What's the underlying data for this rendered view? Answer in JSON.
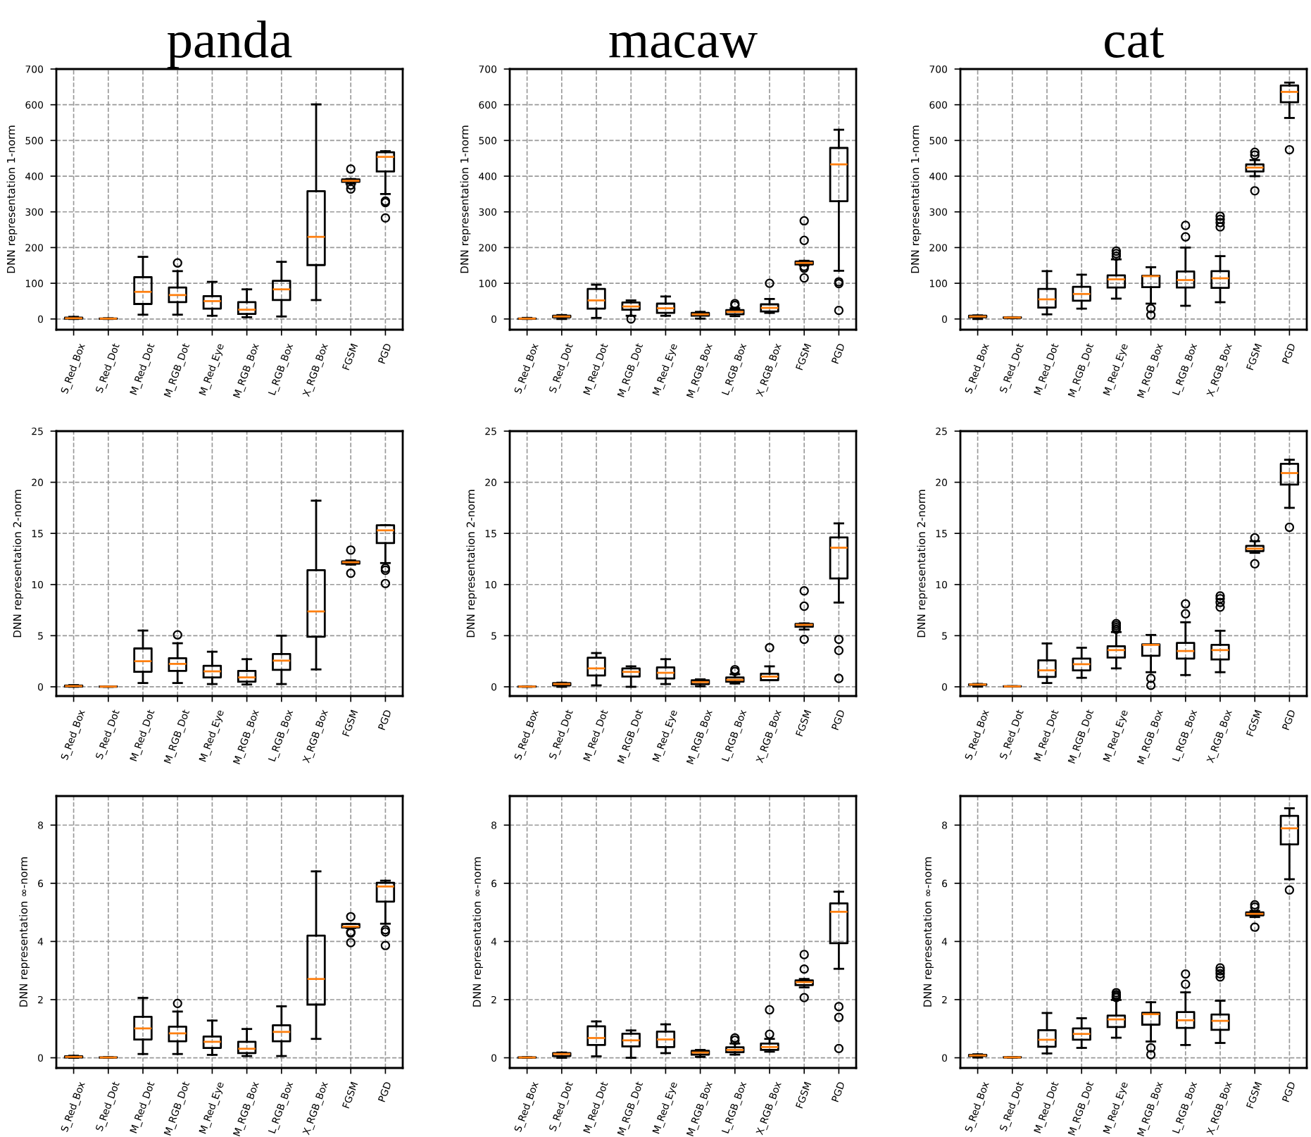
{
  "chart_data": [
    {
      "type": "box",
      "title": "panda",
      "ylabel": "DNN representation 1-norm",
      "categories": [
        "S_Red_Box",
        "S_Red_Dot",
        "M_Red_Dot",
        "M_RGB_Dot",
        "M_Red_Eye",
        "M_RGB_Box",
        "L_RGB_Box",
        "X_RGB_Box",
        "FGSM",
        "PGD"
      ],
      "ylim": [
        -30,
        700
      ],
      "yticks": [
        0,
        100,
        200,
        300,
        400,
        500,
        600,
        700
      ],
      "grid": true,
      "boxes": [
        {
          "low": 0,
          "q1": 1,
          "median": 2,
          "q3": 4,
          "high": 6
        },
        {
          "low": 0,
          "q1": 0.5,
          "median": 1,
          "q3": 1.5,
          "high": 2
        },
        {
          "low": 12,
          "q1": 42,
          "median": 76,
          "q3": 117,
          "high": 174
        },
        {
          "low": 12,
          "q1": 47,
          "median": 67,
          "q3": 88,
          "high": 134,
          "outliers": [
            157
          ]
        },
        {
          "low": 9,
          "q1": 29,
          "median": 50,
          "q3": 64,
          "high": 104
        },
        {
          "low": 5,
          "q1": 14,
          "median": 26,
          "q3": 47,
          "high": 83
        },
        {
          "low": 7,
          "q1": 53,
          "median": 83,
          "q3": 107,
          "high": 160
        },
        {
          "low": 53,
          "q1": 151,
          "median": 230,
          "q3": 358,
          "high": 601
        },
        {
          "low": 379,
          "q1": 384,
          "median": 387,
          "q3": 391,
          "high": 392,
          "outliers": [
            420,
            375,
            364
          ]
        },
        {
          "low": 350,
          "q1": 413,
          "median": 454,
          "q3": 467,
          "high": 470,
          "outliers": [
            330,
            326,
            283
          ]
        }
      ]
    },
    {
      "type": "box",
      "title": "macaw",
      "ylabel": "DNN representation 1-norm",
      "categories": [
        "S_Red_Box",
        "S_Red_Dot",
        "M_Red_Dot",
        "M_RGB_Dot",
        "M_Red_Eye",
        "M_RGB_Box",
        "L_RGB_Box",
        "X_RGB_Box",
        "FGSM",
        "PGD"
      ],
      "ylim": [
        -30,
        700
      ],
      "yticks": [
        0,
        100,
        200,
        300,
        400,
        500,
        600,
        700
      ],
      "grid": true,
      "boxes": [
        {
          "low": 0,
          "q1": 0.5,
          "median": 1,
          "q3": 1.5,
          "high": 3
        },
        {
          "low": 0,
          "q1": 5,
          "median": 7,
          "q3": 9,
          "high": 11
        },
        {
          "low": 3,
          "q1": 29,
          "median": 52,
          "q3": 84,
          "high": 96
        },
        {
          "low": 9,
          "q1": 26,
          "median": 35,
          "q3": 46,
          "high": 52,
          "outliers": [
            0
          ]
        },
        {
          "low": 9,
          "q1": 17,
          "median": 30,
          "q3": 43,
          "high": 63
        },
        {
          "low": 1,
          "q1": 9,
          "median": 13,
          "q3": 17,
          "high": 20
        },
        {
          "low": 8,
          "q1": 13,
          "median": 20,
          "q3": 25,
          "high": 30,
          "outliers": [
            43,
            38
          ]
        },
        {
          "low": 17,
          "q1": 21,
          "median": 31,
          "q3": 41,
          "high": 56,
          "outliers": [
            100
          ]
        },
        {
          "low": 150,
          "q1": 153,
          "median": 157,
          "q3": 161,
          "high": 163,
          "outliers": [
            275,
            220,
            147,
            142,
            115
          ]
        },
        {
          "low": 135,
          "q1": 330,
          "median": 433,
          "q3": 479,
          "high": 530,
          "outliers": [
            104,
            99,
            24
          ]
        }
      ]
    },
    {
      "type": "box",
      "title": "cat",
      "ylabel": "DNN representation 1-norm",
      "categories": [
        "S_Red_Box",
        "S_Red_Dot",
        "M_Red_Dot",
        "M_RGB_Dot",
        "M_Red_Eye",
        "M_RGB_Box",
        "L_RGB_Box",
        "X_RGB_Box",
        "FGSM",
        "PGD"
      ],
      "ylim": [
        -30,
        700
      ],
      "yticks": [
        0,
        100,
        200,
        300,
        400,
        500,
        600,
        700
      ],
      "grid": true,
      "boxes": [
        {
          "low": 0,
          "q1": 5,
          "median": 7,
          "q3": 9,
          "high": 10
        },
        {
          "low": 2,
          "q1": 3,
          "median": 4,
          "q3": 4.5,
          "high": 5
        },
        {
          "low": 13,
          "q1": 32,
          "median": 55,
          "q3": 84,
          "high": 134
        },
        {
          "low": 29,
          "q1": 51,
          "median": 70,
          "q3": 90,
          "high": 124
        },
        {
          "low": 57,
          "q1": 88,
          "median": 111,
          "q3": 122,
          "high": 167,
          "outliers": [
            190,
            183,
            176
          ]
        },
        {
          "low": 43,
          "q1": 89,
          "median": 120,
          "q3": 121,
          "high": 145,
          "outliers": [
            29,
            11
          ]
        },
        {
          "low": 37,
          "q1": 88,
          "median": 109,
          "q3": 133,
          "high": 200,
          "outliers": [
            262,
            230
          ]
        },
        {
          "low": 47,
          "q1": 87,
          "median": 114,
          "q3": 134,
          "high": 176,
          "outliers": [
            288,
            279,
            270,
            258
          ]
        },
        {
          "low": 400,
          "q1": 413,
          "median": 424,
          "q3": 433,
          "high": 445,
          "outliers": [
            467,
            459,
            359
          ]
        },
        {
          "low": 563,
          "q1": 607,
          "median": 636,
          "q3": 654,
          "high": 662,
          "outliers": [
            474
          ]
        }
      ]
    },
    {
      "type": "box",
      "ylabel": "DNN representation 2-norm",
      "categories": [
        "S_Red_Box",
        "S_Red_Dot",
        "M_Red_Dot",
        "M_RGB_Dot",
        "M_Red_Eye",
        "M_RGB_Box",
        "L_RGB_Box",
        "X_RGB_Box",
        "FGSM",
        "PGD"
      ],
      "ylim": [
        -0.9,
        25
      ],
      "yticks": [
        0,
        5,
        10,
        15,
        20,
        25
      ],
      "grid": true,
      "boxes": [
        {
          "low": 0,
          "q1": 0.02,
          "median": 0.07,
          "q3": 0.13,
          "high": 0.17
        },
        {
          "low": 0,
          "q1": 0.01,
          "median": 0.02,
          "q3": 0.03,
          "high": 0.04
        },
        {
          "low": 0.37,
          "q1": 1.47,
          "median": 2.5,
          "q3": 3.75,
          "high": 5.5
        },
        {
          "low": 0.37,
          "q1": 1.56,
          "median": 2.24,
          "q3": 2.79,
          "high": 4.26,
          "outliers": [
            5.08
          ]
        },
        {
          "low": 0.27,
          "q1": 0.92,
          "median": 1.51,
          "q3": 2.06,
          "high": 3.43
        },
        {
          "low": 0.23,
          "q1": 0.5,
          "median": 0.92,
          "q3": 1.56,
          "high": 2.7
        },
        {
          "low": 0.27,
          "q1": 1.65,
          "median": 2.56,
          "q3": 3.2,
          "high": 5.0
        },
        {
          "low": 1.7,
          "q1": 4.9,
          "median": 7.37,
          "q3": 11.4,
          "high": 18.2
        },
        {
          "low": 11.95,
          "q1": 12.04,
          "median": 12.18,
          "q3": 12.27,
          "high": 12.36,
          "outliers": [
            13.37,
            11.1
          ]
        },
        {
          "low": 12.1,
          "q1": 14.05,
          "median": 15.3,
          "q3": 15.8,
          "high": 15.8,
          "outliers": [
            11.6,
            11.4,
            10.1
          ]
        }
      ]
    },
    {
      "type": "box",
      "ylabel": "DNN representation 2-norm",
      "categories": [
        "S_Red_Box",
        "S_Red_Dot",
        "M_Red_Dot",
        "M_RGB_Dot",
        "M_Red_Eye",
        "M_RGB_Box",
        "L_RGB_Box",
        "X_RGB_Box",
        "FGSM",
        "PGD"
      ],
      "ylim": [
        -0.9,
        25
      ],
      "yticks": [
        0,
        5,
        10,
        15,
        20,
        25
      ],
      "grid": true,
      "boxes": [
        {
          "low": 0,
          "q1": 0.01,
          "median": 0.02,
          "q3": 0.03,
          "high": 0.05
        },
        {
          "low": 0,
          "q1": 0.14,
          "median": 0.27,
          "q3": 0.37,
          "high": 0.4
        },
        {
          "low": 0.14,
          "q1": 1.1,
          "median": 1.8,
          "q3": 2.85,
          "high": 3.3
        },
        {
          "low": 0,
          "q1": 1.0,
          "median": 1.46,
          "q3": 1.8,
          "high": 2.0
        },
        {
          "low": 0.27,
          "q1": 0.82,
          "median": 1.37,
          "q3": 1.9,
          "high": 2.7
        },
        {
          "low": 0.05,
          "q1": 0.27,
          "median": 0.46,
          "q3": 0.64,
          "high": 0.73
        },
        {
          "low": 0.32,
          "q1": 0.5,
          "median": 0.68,
          "q3": 0.91,
          "high": 1.23,
          "outliers": [
            1.68,
            1.5
          ]
        },
        {
          "low": 0.65,
          "q1": 0.65,
          "median": 1.0,
          "q3": 1.28,
          "high": 2.0,
          "outliers": [
            3.83
          ]
        },
        {
          "low": 5.6,
          "q1": 5.87,
          "median": 6.06,
          "q3": 6.15,
          "high": 6.2,
          "outliers": [
            9.38,
            7.88,
            4.64
          ]
        },
        {
          "low": 8.24,
          "q1": 10.6,
          "median": 13.6,
          "q3": 14.6,
          "high": 15.98,
          "outliers": [
            4.64,
            3.55,
            0.82
          ]
        }
      ]
    },
    {
      "type": "box",
      "ylabel": "DNN representation 2-norm",
      "categories": [
        "S_Red_Box",
        "S_Red_Dot",
        "M_Red_Dot",
        "M_RGB_Dot",
        "M_Red_Eye",
        "M_RGB_Box",
        "L_RGB_Box",
        "X_RGB_Box",
        "FGSM",
        "PGD"
      ],
      "ylim": [
        -0.9,
        25
      ],
      "yticks": [
        0,
        5,
        10,
        15,
        20,
        25
      ],
      "grid": true,
      "boxes": [
        {
          "low": 0.02,
          "q1": 0.18,
          "median": 0.22,
          "q3": 0.25,
          "high": 0.28
        },
        {
          "low": 0.02,
          "q1": 0.03,
          "median": 0.04,
          "q3": 0.05,
          "high": 0.06
        },
        {
          "low": 0.37,
          "q1": 0.97,
          "median": 1.61,
          "q3": 2.58,
          "high": 4.24
        },
        {
          "low": 0.88,
          "q1": 1.61,
          "median": 2.21,
          "q3": 2.76,
          "high": 3.82
        },
        {
          "low": 1.8,
          "q1": 2.86,
          "median": 3.59,
          "q3": 3.96,
          "high": 5.35,
          "outliers": [
            6.18,
            5.99,
            5.8,
            5.62
          ]
        },
        {
          "low": 1.43,
          "q1": 3.04,
          "median": 4.1,
          "q3": 4.15,
          "high": 5.07,
          "outliers": [
            0.83,
            0.14
          ]
        },
        {
          "low": 1.15,
          "q1": 2.76,
          "median": 3.5,
          "q3": 4.29,
          "high": 6.31,
          "outliers": [
            8.11,
            7.14
          ]
        },
        {
          "low": 1.43,
          "q1": 2.67,
          "median": 3.59,
          "q3": 4.1,
          "high": 5.48,
          "outliers": [
            8.89,
            8.62,
            8.25,
            7.79
          ]
        },
        {
          "low": 13.1,
          "q1": 13.27,
          "median": 13.5,
          "q3": 13.78,
          "high": 14.24,
          "outliers": [
            14.56,
            12.03
          ]
        },
        {
          "low": 17.5,
          "q1": 19.77,
          "median": 20.9,
          "q3": 21.8,
          "high": 22.2,
          "outliers": [
            15.6
          ]
        }
      ]
    },
    {
      "type": "box",
      "ylabel": "DNN representation ∞-norm",
      "categories": [
        "S_Red_Box",
        "S_Red_Dot",
        "M_Red_Dot",
        "M_RGB_Dot",
        "M_Red_Eye",
        "M_RGB_Box",
        "L_RGB_Box",
        "X_RGB_Box",
        "FGSM",
        "PGD"
      ],
      "ylim": [
        -0.35,
        9
      ],
      "yticks": [
        0,
        2,
        4,
        6,
        8
      ],
      "grid": true,
      "boxes": [
        {
          "low": 0,
          "q1": 0.01,
          "median": 0.03,
          "q3": 0.05,
          "high": 0.07
        },
        {
          "low": 0,
          "q1": 0.005,
          "median": 0.01,
          "q3": 0.015,
          "high": 0.02
        },
        {
          "low": 0.13,
          "q1": 0.63,
          "median": 1.01,
          "q3": 1.41,
          "high": 2.06
        },
        {
          "low": 0.13,
          "q1": 0.57,
          "median": 0.84,
          "q3": 1.07,
          "high": 1.59,
          "outliers": [
            1.87
          ]
        },
        {
          "low": 0.1,
          "q1": 0.34,
          "median": 0.55,
          "q3": 0.73,
          "high": 1.28
        },
        {
          "low": 0.06,
          "q1": 0.16,
          "median": 0.31,
          "q3": 0.55,
          "high": 0.99
        },
        {
          "low": 0.06,
          "q1": 0.57,
          "median": 0.89,
          "q3": 1.12,
          "high": 1.77
        },
        {
          "low": 0.65,
          "q1": 1.83,
          "median": 2.71,
          "q3": 4.2,
          "high": 6.41
        },
        {
          "low": 4.46,
          "q1": 4.48,
          "median": 4.51,
          "q3": 4.6,
          "high": 4.6,
          "outliers": [
            4.85,
            4.32,
            4.29,
            3.96
          ]
        },
        {
          "low": 4.61,
          "q1": 5.37,
          "median": 5.89,
          "q3": 6.02,
          "high": 6.09,
          "outliers": [
            4.4,
            4.33,
            3.86
          ]
        }
      ]
    },
    {
      "type": "box",
      "ylabel": "DNN representation ∞-norm",
      "categories": [
        "S_Red_Box",
        "S_Red_Dot",
        "M_Red_Dot",
        "M_RGB_Dot",
        "M_Red_Eye",
        "M_RGB_Box",
        "L_RGB_Box",
        "X_RGB_Box",
        "FGSM",
        "PGD"
      ],
      "ylim": [
        -0.35,
        9
      ],
      "yticks": [
        0,
        2,
        4,
        6,
        8
      ],
      "grid": true,
      "boxes": [
        {
          "low": 0,
          "q1": 0.005,
          "median": 0.01,
          "q3": 0.015,
          "high": 0.02
        },
        {
          "low": 0,
          "q1": 0.06,
          "median": 0.13,
          "q3": 0.16,
          "high": 0.18
        },
        {
          "low": 0.05,
          "q1": 0.44,
          "median": 0.68,
          "q3": 1.08,
          "high": 1.25
        },
        {
          "low": 0,
          "q1": 0.39,
          "median": 0.6,
          "q3": 0.83,
          "high": 0.94
        },
        {
          "low": 0.16,
          "q1": 0.37,
          "median": 0.63,
          "q3": 0.9,
          "high": 1.15
        },
        {
          "low": 0.03,
          "q1": 0.11,
          "median": 0.18,
          "q3": 0.24,
          "high": 0.27
        },
        {
          "low": 0.11,
          "q1": 0.19,
          "median": 0.27,
          "q3": 0.36,
          "high": 0.49,
          "outliers": [
            0.68,
            0.6
          ]
        },
        {
          "low": 0.21,
          "q1": 0.27,
          "median": 0.37,
          "q3": 0.49,
          "high": 0.65,
          "outliers": [
            1.65,
            0.81
          ]
        },
        {
          "low": 2.42,
          "q1": 2.5,
          "median": 2.6,
          "q3": 2.66,
          "high": 2.71,
          "outliers": [
            3.55,
            3.05,
            2.07
          ]
        },
        {
          "low": 3.06,
          "q1": 3.94,
          "median": 5.02,
          "q3": 5.31,
          "high": 5.71,
          "outliers": [
            1.76,
            1.39,
            0.32
          ]
        }
      ]
    },
    {
      "type": "box",
      "ylabel": "DNN representation ∞-norm",
      "categories": [
        "S_Red_Box",
        "S_Red_Dot",
        "M_Red_Dot",
        "M_RGB_Dot",
        "M_Red_Eye",
        "M_RGB_Box",
        "L_RGB_Box",
        "X_RGB_Box",
        "FGSM",
        "PGD"
      ],
      "ylim": [
        -0.35,
        9
      ],
      "yticks": [
        0,
        2,
        4,
        6,
        8
      ],
      "grid": true,
      "boxes": [
        {
          "low": 0.01,
          "q1": 0.06,
          "median": 0.08,
          "q3": 0.1,
          "high": 0.12
        },
        {
          "low": 0.005,
          "q1": 0.01,
          "median": 0.015,
          "q3": 0.02,
          "high": 0.025
        },
        {
          "low": 0.15,
          "q1": 0.38,
          "median": 0.62,
          "q3": 0.95,
          "high": 1.54
        },
        {
          "low": 0.34,
          "q1": 0.62,
          "median": 0.82,
          "q3": 1.01,
          "high": 1.36
        },
        {
          "low": 0.69,
          "q1": 1.06,
          "median": 1.32,
          "q3": 1.45,
          "high": 1.99,
          "outliers": [
            2.24,
            2.17,
            2.12,
            2.07
          ]
        },
        {
          "low": 0.56,
          "q1": 1.14,
          "median": 1.5,
          "q3": 1.55,
          "high": 1.91,
          "outliers": [
            0.34,
            0.11
          ]
        },
        {
          "low": 0.44,
          "q1": 1.03,
          "median": 1.29,
          "q3": 1.57,
          "high": 2.25,
          "outliers": [
            2.88,
            2.53
          ]
        },
        {
          "low": 0.51,
          "q1": 0.96,
          "median": 1.27,
          "q3": 1.49,
          "high": 1.96,
          "outliers": [
            3.09,
            2.99,
            2.89,
            2.78
          ]
        },
        {
          "low": 4.84,
          "q1": 4.9,
          "median": 4.95,
          "q3": 5.0,
          "high": 5.05,
          "outliers": [
            5.26,
            5.18,
            4.49
          ]
        },
        {
          "low": 6.14,
          "q1": 7.34,
          "median": 7.89,
          "q3": 8.32,
          "high": 8.58,
          "outliers": [
            5.77
          ]
        }
      ]
    }
  ]
}
